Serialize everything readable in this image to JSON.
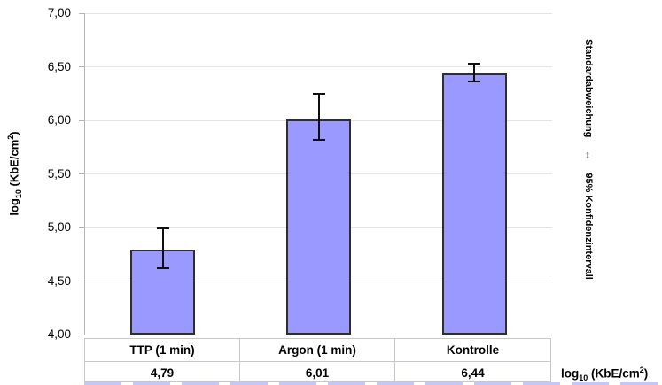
{
  "chart_data": {
    "type": "bar",
    "title": "",
    "grid": true,
    "legend_position": "none",
    "ylim": [
      4.0,
      7.0
    ],
    "yticks": [
      {
        "label": "7,00",
        "value": 7.0
      },
      {
        "label": "6,50",
        "value": 6.5
      },
      {
        "label": "6,00",
        "value": 6.0
      },
      {
        "label": "5,50",
        "value": 5.5
      },
      {
        "label": "5,00",
        "value": 5.0
      },
      {
        "label": "4,50",
        "value": 4.5
      },
      {
        "label": "4,00",
        "value": 4.0
      }
    ],
    "categories": [
      "TTP (1 min)",
      "Argon (1 min)",
      "Kontrolle"
    ],
    "values": [
      4.79,
      6.01,
      6.44
    ],
    "value_labels": [
      "4,79",
      "6,01",
      "6,44"
    ],
    "error_bars": [
      {
        "low": 4.62,
        "high": 4.99
      },
      {
        "low": 5.82,
        "high": 6.25
      },
      {
        "low": 6.36,
        "high": 6.53
      }
    ],
    "ylabel": {
      "prefix": "log",
      "sub": "10",
      "mid": " (KbE/cm",
      "sup": "2",
      "suffix": ")"
    },
    "series_label": {
      "prefix": "log",
      "sub": "10",
      "mid": " (KbE/cm",
      "sup": "2",
      "suffix": ")"
    },
    "right_annotation": {
      "line1": "Standardabweichung",
      "arrow": "⇔",
      "line2": "95% Konfidenzintervall"
    },
    "bar_color": "#9999ff",
    "bar_border_color": "#2e2e2e",
    "gridline_color": "#e4e4e4",
    "axis_color": "#b5b5b5",
    "error_bar_color": "#101010"
  }
}
